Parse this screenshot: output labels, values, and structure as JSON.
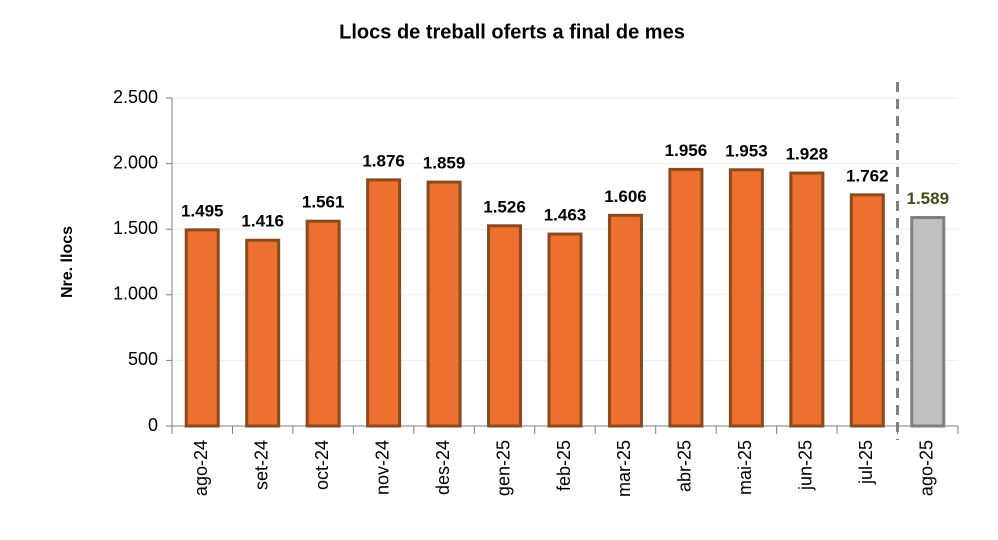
{
  "chart_data": {
    "type": "bar",
    "title": "Llocs de treball oferts a final de mes",
    "y_label": "Nre. llocs",
    "categories": [
      "ago-24",
      "set-24",
      "oct-24",
      "nov-24",
      "des-24",
      "gen-25",
      "feb-25",
      "mar-25",
      "abr-25",
      "mai-25",
      "jun-25",
      "jul-25",
      "ago-25"
    ],
    "values": [
      1495,
      1416,
      1561,
      1876,
      1859,
      1526,
      1463,
      1606,
      1956,
      1953,
      1928,
      1762,
      1589
    ],
    "value_labels": [
      "1.495",
      "1.416",
      "1.561",
      "1.876",
      "1.859",
      "1.526",
      "1.463",
      "1.606",
      "1.956",
      "1.953",
      "1.928",
      "1.762",
      "1.589"
    ],
    "colors": [
      "#ed7031",
      "#ed7031",
      "#ed7031",
      "#ed7031",
      "#ed7031",
      "#ed7031",
      "#ed7031",
      "#ed7031",
      "#ed7031",
      "#ed7031",
      "#ed7031",
      "#ed7031",
      "#c0c0c0"
    ],
    "edge_colors": [
      "#8b4a1c",
      "#8b4a1c",
      "#8b4a1c",
      "#8b4a1c",
      "#8b4a1c",
      "#8b4a1c",
      "#8b4a1c",
      "#8b4a1c",
      "#8b4a1c",
      "#8b4a1c",
      "#8b4a1c",
      "#8b4a1c",
      "#7f7f7f"
    ],
    "value_label_colors": [
      "#000000",
      "#000000",
      "#000000",
      "#000000",
      "#000000",
      "#000000",
      "#000000",
      "#000000",
      "#000000",
      "#000000",
      "#000000",
      "#000000",
      "#4a4a14"
    ],
    "ylim": [
      0,
      2500
    ],
    "yticks": [
      0,
      500,
      {
        "value": 1000,
        "label": "1.000"
      },
      {
        "value": 1500,
        "label": "1.500"
      },
      {
        "value": 2000,
        "label": "2.000"
      },
      {
        "value": 2500,
        "label": "2.500"
      }
    ],
    "grid": true
  }
}
